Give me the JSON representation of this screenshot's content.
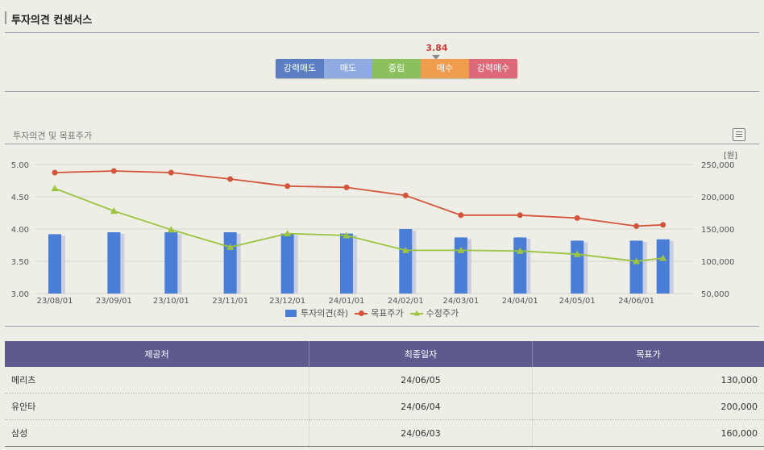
{
  "section": {
    "title": "투자의견 컨센서스"
  },
  "consensus": {
    "score": "3.84",
    "scale": [
      {
        "label": "강력매도",
        "color": "#5b7ec2"
      },
      {
        "label": "매도",
        "color": "#8eaae0"
      },
      {
        "label": "중립",
        "color": "#8cc05c"
      },
      {
        "label": "매수",
        "color": "#ef9c4e"
      },
      {
        "label": "강력매수",
        "color": "#dc6878"
      }
    ]
  },
  "chart_section": {
    "title": "투자의견 및 목표주가"
  },
  "chart_data": {
    "type": "bar",
    "x_dates": [
      "2023-08-01",
      "2023-09-01",
      "2023-10-01",
      "2023-11-01",
      "2023-12-01",
      "2024-01-01",
      "2024-02-01",
      "2024-03-01",
      "2024-04-01",
      "2024-05-01",
      "2024-06-01",
      "2024-06-15"
    ],
    "tick_labels": [
      "23/08/01",
      "23/09/01",
      "23/10/01",
      "23/11/01",
      "23/12/01",
      "24/01/01",
      "24/02/01",
      "24/03/01",
      "24/04/01",
      "24/05/01",
      "24/06/01"
    ],
    "y_left": {
      "range": [
        3.0,
        5.0
      ],
      "ticks": [
        "3.00",
        "3.50",
        "4.00",
        "4.50",
        "5.00"
      ]
    },
    "y_right": {
      "unit": "[원]",
      "range": [
        50000,
        250000
      ],
      "ticks": [
        "50,000",
        "100,000",
        "150,000",
        "200,000",
        "250,000"
      ]
    },
    "series": [
      {
        "name": "투자의견(좌)",
        "type": "bar",
        "axis": "left",
        "color": "#4a7ed6",
        "values": [
          3.92,
          3.95,
          3.95,
          3.95,
          3.93,
          3.93,
          4.0,
          3.87,
          3.87,
          3.82,
          3.82,
          3.84
        ]
      },
      {
        "name": "목표주가",
        "type": "line",
        "axis": "right",
        "color": "#d4543a",
        "marker": "circle",
        "values": [
          237500,
          240000,
          237500,
          227500,
          216500,
          214500,
          202000,
          171500,
          171500,
          167000,
          154500,
          156500
        ]
      },
      {
        "name": "수정주가",
        "type": "line",
        "axis": "right",
        "color": "#9cc43e",
        "marker": "triangle",
        "values": [
          213000,
          178000,
          149000,
          122000,
          143000,
          140000,
          117000,
          117000,
          116000,
          111000,
          100000,
          105000
        ]
      }
    ],
    "grid": true,
    "legend": "bottom"
  },
  "providers_table": {
    "columns": [
      "제공처",
      "최종일자",
      "목표가"
    ],
    "rows": [
      {
        "provider": "메리츠",
        "date": "24/06/05",
        "target": "130,000"
      },
      {
        "provider": "유안타",
        "date": "24/06/04",
        "target": "200,000"
      },
      {
        "provider": "삼성",
        "date": "24/06/03",
        "target": "160,000"
      }
    ]
  }
}
